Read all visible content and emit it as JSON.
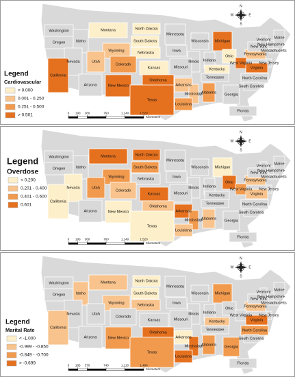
{
  "states": [
    "Washington",
    "Oregon",
    "Idaho",
    "Montana",
    "Wyoming",
    "North Dakota",
    "South Dakota",
    "Nebraska",
    "Minnesota",
    "Iowa",
    "Wisconsin",
    "Michigan",
    "Illinois",
    "Indiana",
    "Ohio",
    "Pennsylvania",
    "New York",
    "Vermont",
    "Maine",
    "New Hampshire",
    "Massachusetts",
    "New Jersey",
    "Nevada",
    "Utah",
    "Colorado",
    "Kansas",
    "Missouri",
    "Kentucky",
    "West Virginia",
    "Virginia",
    "California",
    "Arizona",
    "New Mexico",
    "Oklahoma",
    "Arkansas",
    "Tennessee",
    "North Carolina",
    "South Carolina",
    "Mississippi",
    "Alabama",
    "Georgia",
    "Louisiana",
    "Texas",
    "Florida"
  ],
  "no_data_color": "#d9d9d9",
  "compass": [
    "N",
    "E",
    "S",
    "W"
  ],
  "panels": [
    {
      "legend_title": "Legend",
      "variable": "Cardiovascular",
      "classes": [
        {
          "label": "< 0.000",
          "color": "#fdefc9"
        },
        {
          "label": "0.001 - 0.250",
          "color": "#f8c38c"
        },
        {
          "label": "0.251 - 0.500",
          "color": "#f19a4e"
        },
        {
          "label": "> 0.501",
          "color": "#e5711f"
        }
      ],
      "scale_ticks": [
        0,
        190,
        380,
        760,
        {
          "value": 1140,
          "label": "1,140"
        },
        {
          "value": 1520,
          "label": "1,520"
        }
      ],
      "scale_unit": "Kilometers",
      "state_classes": [
        null,
        null,
        null,
        0,
        1,
        0,
        0,
        0,
        null,
        null,
        null,
        3,
        null,
        null,
        0,
        1,
        null,
        null,
        null,
        null,
        null,
        null,
        null,
        1,
        2,
        0,
        null,
        0,
        3,
        3,
        3,
        null,
        3,
        3,
        1,
        null,
        null,
        null,
        1,
        2,
        null,
        2,
        3,
        null
      ]
    },
    {
      "legend_title": "Legend",
      "variable": "Overdose",
      "classes": [
        {
          "label": "< 0.200",
          "color": "#fdefc9"
        },
        {
          "label": "0.201 - 0.400",
          "color": "#f8c38c"
        },
        {
          "label": "0.401 - 0.600",
          "color": "#f19a4e"
        },
        {
          "label": "0.601",
          "color": "#e5711f"
        }
      ],
      "scale_ticks": [
        0,
        190,
        380,
        760,
        {
          "value": 1140,
          "label": "1,140"
        },
        {
          "value": 1520,
          "label": "1,520"
        }
      ],
      "scale_unit": "Kilometers",
      "state_classes": [
        null,
        null,
        null,
        3,
        2,
        3,
        2,
        null,
        null,
        null,
        null,
        0,
        null,
        null,
        3,
        1,
        null,
        null,
        null,
        null,
        null,
        null,
        0,
        2,
        1,
        3,
        null,
        null,
        2,
        1,
        0,
        null,
        0,
        1,
        3,
        null,
        null,
        null,
        2,
        1,
        null,
        1,
        0,
        null
      ]
    },
    {
      "legend_title": "Legend",
      "variable": "Marital Rate",
      "classes": [
        {
          "label": "< -1.000",
          "color": "#fdefc9"
        },
        {
          "label": "-0.999 - -0.850",
          "color": "#f8c38c"
        },
        {
          "label": "-0.849 - -0.700",
          "color": "#f19a4e"
        },
        {
          "label": "> -0.699",
          "color": "#e5711f"
        }
      ],
      "scale_ticks": [
        0,
        185,
        370,
        740,
        {
          "value": 1110,
          "label": "1,110"
        },
        {
          "value": 1480,
          "label": "1,480"
        }
      ],
      "scale_unit": "Kilometers",
      "state_classes": [
        null,
        null,
        1,
        1,
        1,
        0,
        0,
        1,
        null,
        null,
        null,
        2,
        null,
        null,
        null,
        1,
        null,
        null,
        null,
        null,
        null,
        null,
        null,
        null,
        null,
        null,
        null,
        1,
        null,
        3,
        1,
        null,
        2,
        3,
        0,
        null,
        2,
        null,
        3,
        2,
        2,
        3,
        2,
        null
      ]
    }
  ]
}
